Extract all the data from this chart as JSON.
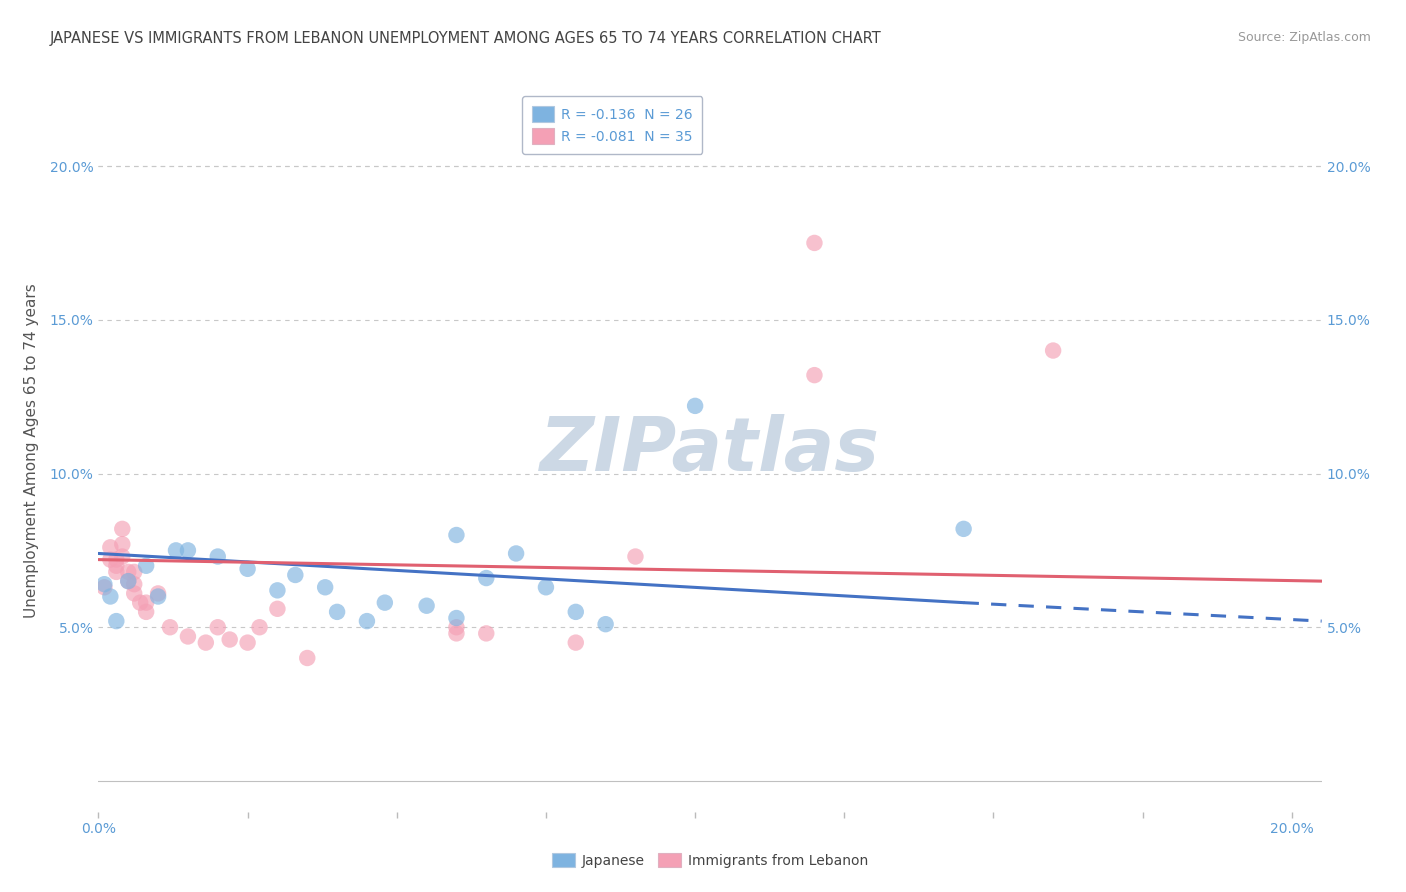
{
  "title": "JAPANESE VS IMMIGRANTS FROM LEBANON UNEMPLOYMENT AMONG AGES 65 TO 74 YEARS CORRELATION CHART",
  "source": "Source: ZipAtlas.com",
  "ylabel": "Unemployment Among Ages 65 to 74 years",
  "xlim": [
    0.0,
    0.205
  ],
  "ylim": [
    -0.01,
    0.225
  ],
  "plot_ylim": [
    0.0,
    0.2
  ],
  "x_ticks": [
    0.0,
    0.025,
    0.05,
    0.075,
    0.1,
    0.125,
    0.15,
    0.175,
    0.2
  ],
  "x_tick_labels": [
    "0.0%",
    "",
    "",
    "",
    "",
    "",
    "",
    "",
    "20.0%"
  ],
  "y_ticks": [
    0.05,
    0.1,
    0.15,
    0.2
  ],
  "y_tick_labels": [
    "5.0%",
    "10.0%",
    "15.0%",
    "20.0%"
  ],
  "watermark_text": "ZIPatlas",
  "legend_entries": [
    {
      "label": "R = -0.136  N = 26",
      "color": "#7eb3e0"
    },
    {
      "label": "R = -0.081  N = 35",
      "color": "#f4a0b5"
    }
  ],
  "japanese_color": "#7eb3e0",
  "lebanon_color": "#f4a0b5",
  "japanese_line_color": "#4472c4",
  "lebanon_line_color": "#e06070",
  "japanese_scatter": [
    [
      0.001,
      0.064
    ],
    [
      0.002,
      0.06
    ],
    [
      0.003,
      0.052
    ],
    [
      0.005,
      0.065
    ],
    [
      0.008,
      0.07
    ],
    [
      0.01,
      0.06
    ],
    [
      0.013,
      0.075
    ],
    [
      0.015,
      0.075
    ],
    [
      0.02,
      0.073
    ],
    [
      0.025,
      0.069
    ],
    [
      0.03,
      0.062
    ],
    [
      0.033,
      0.067
    ],
    [
      0.038,
      0.063
    ],
    [
      0.04,
      0.055
    ],
    [
      0.045,
      0.052
    ],
    [
      0.048,
      0.058
    ],
    [
      0.055,
      0.057
    ],
    [
      0.06,
      0.08
    ],
    [
      0.06,
      0.053
    ],
    [
      0.065,
      0.066
    ],
    [
      0.07,
      0.074
    ],
    [
      0.075,
      0.063
    ],
    [
      0.08,
      0.055
    ],
    [
      0.085,
      0.051
    ],
    [
      0.1,
      0.122
    ],
    [
      0.145,
      0.082
    ]
  ],
  "lebanon_scatter": [
    [
      0.001,
      0.063
    ],
    [
      0.002,
      0.076
    ],
    [
      0.002,
      0.072
    ],
    [
      0.003,
      0.072
    ],
    [
      0.003,
      0.07
    ],
    [
      0.003,
      0.068
    ],
    [
      0.004,
      0.082
    ],
    [
      0.004,
      0.077
    ],
    [
      0.004,
      0.073
    ],
    [
      0.005,
      0.068
    ],
    [
      0.005,
      0.065
    ],
    [
      0.006,
      0.068
    ],
    [
      0.006,
      0.064
    ],
    [
      0.006,
      0.061
    ],
    [
      0.007,
      0.058
    ],
    [
      0.008,
      0.058
    ],
    [
      0.008,
      0.055
    ],
    [
      0.01,
      0.061
    ],
    [
      0.012,
      0.05
    ],
    [
      0.015,
      0.047
    ],
    [
      0.018,
      0.045
    ],
    [
      0.02,
      0.05
    ],
    [
      0.022,
      0.046
    ],
    [
      0.025,
      0.045
    ],
    [
      0.027,
      0.05
    ],
    [
      0.03,
      0.056
    ],
    [
      0.035,
      0.04
    ],
    [
      0.06,
      0.05
    ],
    [
      0.065,
      0.048
    ],
    [
      0.08,
      0.045
    ],
    [
      0.09,
      0.073
    ],
    [
      0.06,
      0.048
    ],
    [
      0.12,
      0.132
    ],
    [
      0.12,
      0.175
    ],
    [
      0.16,
      0.14
    ]
  ],
  "japanese_line_solid": {
    "x0": 0.0,
    "y0": 0.074,
    "x1": 0.145,
    "y1": 0.058
  },
  "japanese_line_dashed": {
    "x0": 0.145,
    "y0": 0.058,
    "x1": 0.205,
    "y1": 0.052
  },
  "lebanon_line": {
    "x0": 0.0,
    "y0": 0.072,
    "x1": 0.205,
    "y1": 0.065
  },
  "background_color": "#ffffff",
  "grid_color": "#c8c8c8",
  "title_color": "#444444",
  "source_color": "#999999",
  "tick_color": "#5b9bd5",
  "ylabel_color": "#555555",
  "title_fontsize": 10.5,
  "tick_fontsize": 10,
  "ylabel_fontsize": 11,
  "watermark_fontsize": 54,
  "watermark_color": "#ccd8e5",
  "scatter_size": 140,
  "scatter_alpha": 0.65,
  "line_width": 2.2
}
